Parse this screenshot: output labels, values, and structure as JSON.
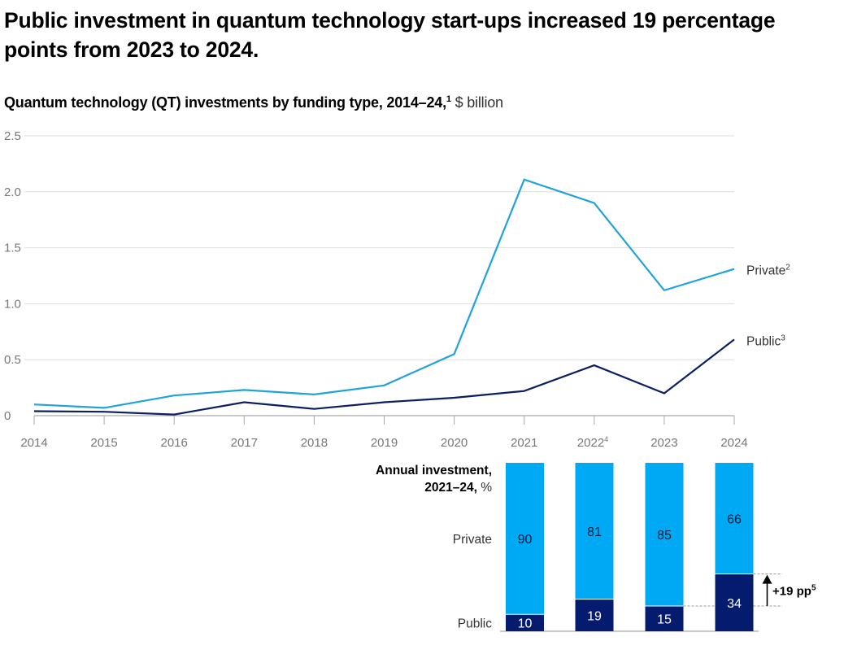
{
  "title": "Public investment in quantum technology start-ups increased 19 percentage points from 2023 to 2024.",
  "subtitle": {
    "main": "Quantum technology (QT) investments by funding type, 2014–24,",
    "footnote": "1",
    "unit": " $ billion"
  },
  "colors": {
    "private": "#00A9F4",
    "public": "#051C6E",
    "private_line": "#1FA3DC",
    "public_line": "#0B1F62",
    "grid": "#DDDDDD",
    "axis": "#AAAAAA"
  },
  "chart_data": [
    {
      "type": "line",
      "title": "Quantum technology (QT) investments by funding type, 2014–24, $ billion",
      "xlabel": "",
      "ylabel": "$ billion",
      "x": [
        "2014",
        "2015",
        "2016",
        "2017",
        "2018",
        "2019",
        "2020",
        "2021",
        "2022",
        "2023",
        "2024"
      ],
      "x_footnotes": {
        "2022": "4"
      },
      "ylim": [
        0,
        2.5
      ],
      "yticks": [
        0,
        0.5,
        1.0,
        1.5,
        2.0,
        2.5
      ],
      "ytick_labels": [
        "0",
        "0.5",
        "1.0",
        "1.5",
        "2.0",
        "2.5"
      ],
      "grid": true,
      "legend": "inline-right",
      "series": [
        {
          "name": "Private",
          "footnote": "2",
          "values": [
            0.1,
            0.07,
            0.18,
            0.23,
            0.19,
            0.27,
            0.55,
            2.11,
            1.9,
            1.12,
            1.31
          ]
        },
        {
          "name": "Public",
          "footnote": "3",
          "values": [
            0.04,
            0.035,
            0.01,
            0.12,
            0.06,
            0.12,
            0.16,
            0.22,
            0.45,
            0.2,
            0.68
          ]
        }
      ]
    },
    {
      "type": "bar",
      "stacked": true,
      "title_line1": "Annual investment,",
      "title_line2_bold": "2021–24,",
      "title_line2_unit": " %",
      "categories": [
        "2021",
        "2022",
        "2023",
        "2024"
      ],
      "series": [
        {
          "name": "Public",
          "values": [
            10,
            19,
            15,
            34
          ]
        },
        {
          "name": "Private",
          "values": [
            90,
            81,
            85,
            66
          ]
        }
      ],
      "ylim": [
        0,
        100
      ],
      "annotation": {
        "text": "+19 pp",
        "footnote": "5",
        "from_category": "2023",
        "to_category": "2024",
        "series": "Public"
      }
    }
  ]
}
